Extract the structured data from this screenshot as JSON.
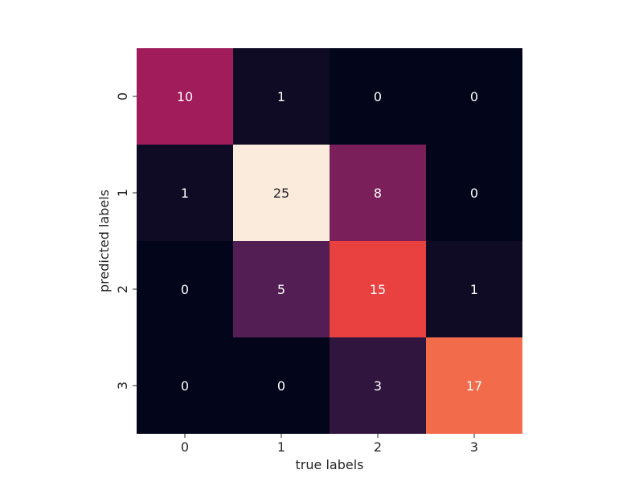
{
  "chart_data": {
    "type": "heatmap",
    "title": "",
    "xlabel": "true labels",
    "ylabel": "predicted labels",
    "x_categories": [
      "0",
      "1",
      "2",
      "3"
    ],
    "y_categories": [
      "0",
      "1",
      "2",
      "3"
    ],
    "values": [
      [
        10,
        1,
        0,
        0
      ],
      [
        1,
        25,
        8,
        0
      ],
      [
        0,
        5,
        15,
        1
      ],
      [
        0,
        0,
        3,
        17
      ]
    ],
    "value_range": [
      0,
      25
    ],
    "colormap": "rocket",
    "annotations": true,
    "colorbar": false,
    "grid": false
  }
}
